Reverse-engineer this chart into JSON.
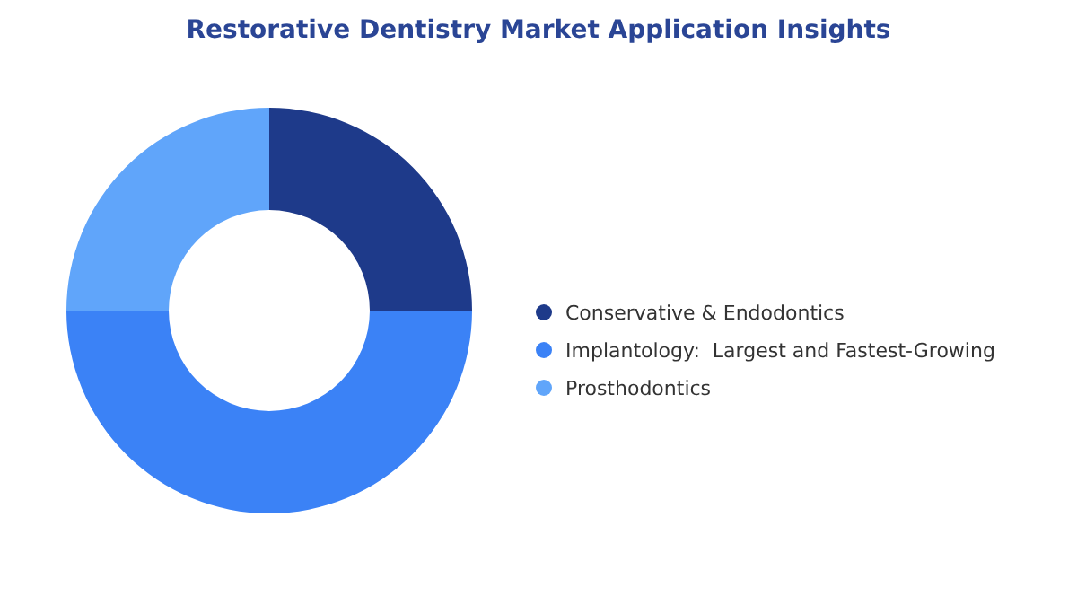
{
  "chart_data": {
    "type": "donut",
    "title": "Restorative Dentistry Market Application Insights",
    "categories": [
      "Conservative & Endodontics",
      "Implantology:  Largest and Fastest-Growing",
      "Prosthodontics"
    ],
    "values": [
      25,
      50,
      25
    ],
    "colors": [
      "#1e3a8a",
      "#3b82f6",
      "#60a5fa"
    ],
    "legend": "right"
  }
}
